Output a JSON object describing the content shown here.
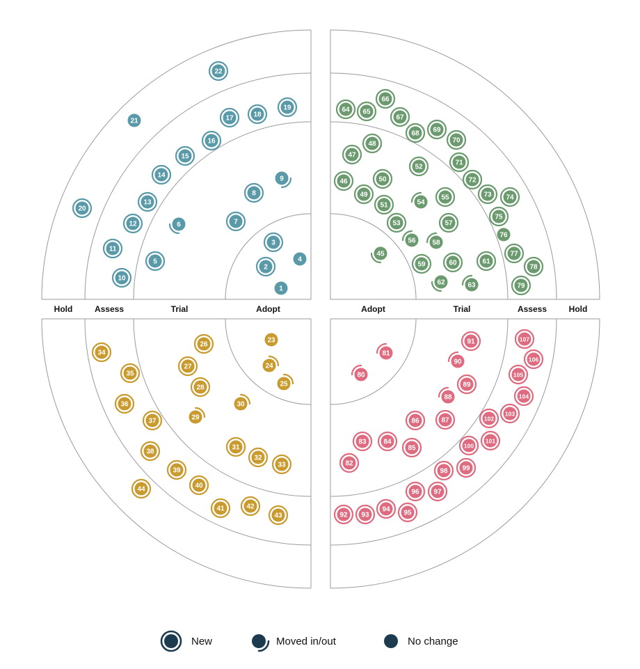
{
  "ring_labels": [
    "Adopt",
    "Trial",
    "Assess",
    "Hold"
  ],
  "legend": [
    {
      "label": "New",
      "kind": "new"
    },
    {
      "label": "Moved in/out",
      "kind": "moved"
    },
    {
      "label": "No change",
      "kind": "none"
    }
  ],
  "colors": {
    "blue": "#5a9aa8",
    "green": "#6b9a6e",
    "gold": "#c99a2e",
    "pink": "#de6b7f",
    "legend": "#1d3b4f",
    "ring_line": "#9a9a9a"
  },
  "quadrants": [
    {
      "id": "top-left",
      "color": "blue",
      "blips": [
        {
          "n": "1",
          "k": "none"
        },
        {
          "n": "2",
          "k": "new"
        },
        {
          "n": "3",
          "k": "new"
        },
        {
          "n": "4",
          "k": "none"
        },
        {
          "n": "5",
          "k": "new"
        },
        {
          "n": "6",
          "k": "moved"
        },
        {
          "n": "7",
          "k": "new"
        },
        {
          "n": "8",
          "k": "new"
        },
        {
          "n": "9",
          "k": "moved"
        },
        {
          "n": "10",
          "k": "new"
        },
        {
          "n": "11",
          "k": "new"
        },
        {
          "n": "12",
          "k": "new"
        },
        {
          "n": "13",
          "k": "new"
        },
        {
          "n": "14",
          "k": "new"
        },
        {
          "n": "15",
          "k": "new"
        },
        {
          "n": "16",
          "k": "new"
        },
        {
          "n": "17",
          "k": "new"
        },
        {
          "n": "18",
          "k": "new"
        },
        {
          "n": "19",
          "k": "new"
        },
        {
          "n": "20",
          "k": "new"
        },
        {
          "n": "21",
          "k": "none"
        },
        {
          "n": "22",
          "k": "new"
        }
      ]
    },
    {
      "id": "top-right",
      "color": "green",
      "blips": [
        {
          "n": "45",
          "k": "moved"
        },
        {
          "n": "46",
          "k": "new"
        },
        {
          "n": "47",
          "k": "new"
        },
        {
          "n": "48",
          "k": "new"
        },
        {
          "n": "49",
          "k": "new"
        },
        {
          "n": "50",
          "k": "new"
        },
        {
          "n": "51",
          "k": "new"
        },
        {
          "n": "52",
          "k": "new"
        },
        {
          "n": "53",
          "k": "new"
        },
        {
          "n": "54",
          "k": "moved"
        },
        {
          "n": "55",
          "k": "new"
        },
        {
          "n": "56",
          "k": "moved"
        },
        {
          "n": "57",
          "k": "new"
        },
        {
          "n": "58",
          "k": "moved"
        },
        {
          "n": "59",
          "k": "new"
        },
        {
          "n": "60",
          "k": "new"
        },
        {
          "n": "61",
          "k": "new"
        },
        {
          "n": "62",
          "k": "moved"
        },
        {
          "n": "63",
          "k": "moved"
        },
        {
          "n": "64",
          "k": "new"
        },
        {
          "n": "65",
          "k": "new"
        },
        {
          "n": "66",
          "k": "new"
        },
        {
          "n": "67",
          "k": "new"
        },
        {
          "n": "68",
          "k": "new"
        },
        {
          "n": "69",
          "k": "new"
        },
        {
          "n": "70",
          "k": "new"
        },
        {
          "n": "71",
          "k": "new"
        },
        {
          "n": "72",
          "k": "new"
        },
        {
          "n": "73",
          "k": "new"
        },
        {
          "n": "74",
          "k": "new"
        },
        {
          "n": "75",
          "k": "new"
        },
        {
          "n": "76",
          "k": "none"
        },
        {
          "n": "77",
          "k": "new"
        },
        {
          "n": "78",
          "k": "new"
        },
        {
          "n": "79",
          "k": "new"
        }
      ]
    },
    {
      "id": "bottom-left",
      "color": "gold",
      "blips": [
        {
          "n": "23",
          "k": "none"
        },
        {
          "n": "24",
          "k": "moved"
        },
        {
          "n": "25",
          "k": "moved"
        },
        {
          "n": "26",
          "k": "new"
        },
        {
          "n": "27",
          "k": "new"
        },
        {
          "n": "28",
          "k": "new"
        },
        {
          "n": "29",
          "k": "moved"
        },
        {
          "n": "30",
          "k": "moved"
        },
        {
          "n": "31",
          "k": "new"
        },
        {
          "n": "32",
          "k": "new"
        },
        {
          "n": "33",
          "k": "new"
        },
        {
          "n": "34",
          "k": "new"
        },
        {
          "n": "35",
          "k": "new"
        },
        {
          "n": "36",
          "k": "new"
        },
        {
          "n": "37",
          "k": "new"
        },
        {
          "n": "38",
          "k": "new"
        },
        {
          "n": "39",
          "k": "new"
        },
        {
          "n": "40",
          "k": "new"
        },
        {
          "n": "41",
          "k": "new"
        },
        {
          "n": "42",
          "k": "new"
        },
        {
          "n": "43",
          "k": "new"
        },
        {
          "n": "44",
          "k": "new"
        }
      ]
    },
    {
      "id": "bottom-right",
      "color": "pink",
      "blips": [
        {
          "n": "80",
          "k": "moved"
        },
        {
          "n": "81",
          "k": "moved"
        },
        {
          "n": "82",
          "k": "new"
        },
        {
          "n": "83",
          "k": "new"
        },
        {
          "n": "84",
          "k": "new"
        },
        {
          "n": "85",
          "k": "new"
        },
        {
          "n": "86",
          "k": "new"
        },
        {
          "n": "87",
          "k": "new"
        },
        {
          "n": "88",
          "k": "moved"
        },
        {
          "n": "89",
          "k": "new"
        },
        {
          "n": "90",
          "k": "moved"
        },
        {
          "n": "91",
          "k": "new"
        },
        {
          "n": "92",
          "k": "new"
        },
        {
          "n": "93",
          "k": "new"
        },
        {
          "n": "94",
          "k": "new"
        },
        {
          "n": "95",
          "k": "new"
        },
        {
          "n": "96",
          "k": "new"
        },
        {
          "n": "97",
          "k": "new"
        },
        {
          "n": "98",
          "k": "new"
        },
        {
          "n": "99",
          "k": "new"
        },
        {
          "n": "100",
          "k": "new"
        },
        {
          "n": "101",
          "k": "new"
        },
        {
          "n": "102",
          "k": "new"
        },
        {
          "n": "103",
          "k": "new"
        },
        {
          "n": "104",
          "k": "new"
        },
        {
          "n": "105",
          "k": "new"
        },
        {
          "n": "106",
          "k": "new"
        },
        {
          "n": "107",
          "k": "new"
        }
      ]
    }
  ]
}
